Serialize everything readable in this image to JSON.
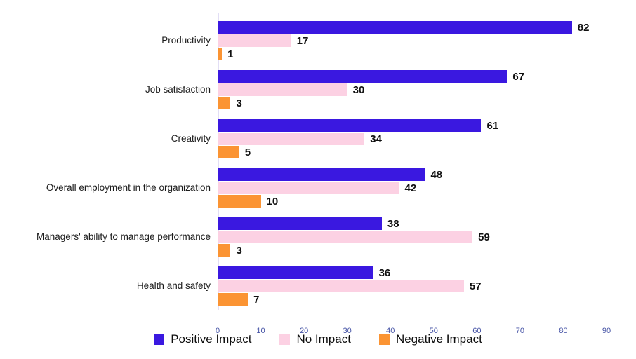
{
  "chart_data": {
    "type": "bar",
    "orientation": "horizontal",
    "categories": [
      "Productivity",
      "Job satisfaction",
      "Creativity",
      "Overall employment in the organization",
      "Managers' ability to manage performance",
      "Health and safety"
    ],
    "series": [
      {
        "name": "Positive Impact",
        "color": "#3a18e0",
        "values": [
          82,
          67,
          61,
          48,
          38,
          36
        ]
      },
      {
        "name": "No Impact",
        "color": "#fcd1e3",
        "values": [
          17,
          30,
          34,
          42,
          59,
          57
        ]
      },
      {
        "name": "Negative Impact",
        "color": "#fb9433",
        "values": [
          1,
          3,
          5,
          10,
          3,
          7
        ]
      }
    ],
    "xlim": [
      0,
      90
    ],
    "ticks": [
      "0",
      "10",
      "20",
      "30",
      "40",
      "50",
      "60",
      "70",
      "80",
      "90"
    ],
    "grid": false,
    "legend_position": "bottom",
    "value_labels": true,
    "axis": {
      "tick_color": "#4452a5",
      "line_color": "#e2def5"
    }
  }
}
